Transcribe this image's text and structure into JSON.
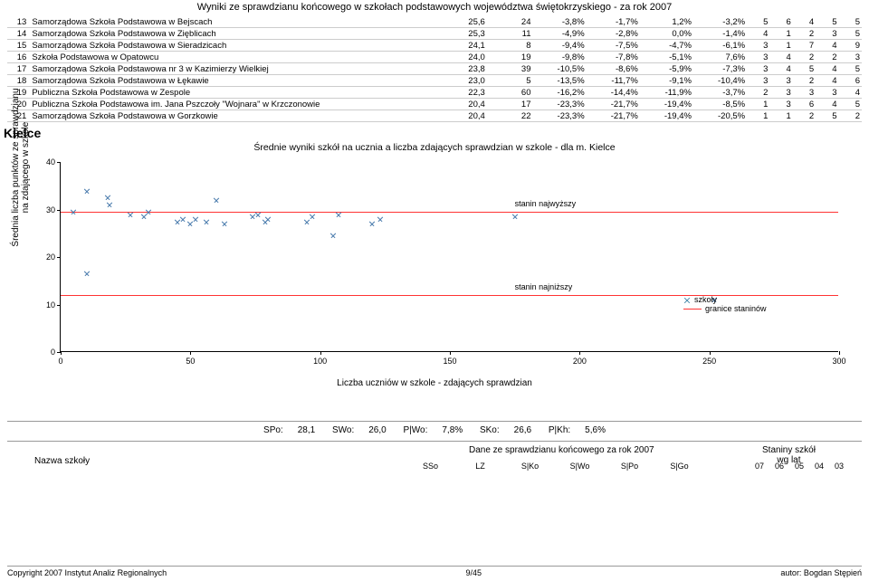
{
  "title": "Wyniki ze sprawdzianu końcowego w szkołach podstawowych województwa świętokrzyskiego - za rok 2007",
  "rows": [
    {
      "idx": 13,
      "name": "Samorządowa Szkoła Podstawowa w Bejscach",
      "sso": "25,6",
      "lz": 24,
      "p": [
        "-3,8%",
        "-1,7%",
        "1,2%",
        "-3,2%"
      ],
      "s": [
        5,
        6,
        4,
        5,
        5
      ]
    },
    {
      "idx": 14,
      "name": "Samorządowa Szkoła Podstawowa w Zięblicach",
      "sso": "25,3",
      "lz": 11,
      "p": [
        "-4,9%",
        "-2,8%",
        "0,0%",
        "-1,4%"
      ],
      "s": [
        4,
        1,
        2,
        3,
        5
      ]
    },
    {
      "idx": 15,
      "name": "Samorządowa Szkoła Podstawowa w Sieradzicach",
      "sso": "24,1",
      "lz": 8,
      "p": [
        "-9,4%",
        "-7,5%",
        "-4,7%",
        "-6,1%"
      ],
      "s": [
        3,
        1,
        7,
        4,
        9
      ]
    },
    {
      "idx": 16,
      "name": "Szkoła Podstawowa w Opatowcu",
      "sso": "24,0",
      "lz": 19,
      "p": [
        "-9,8%",
        "-7,8%",
        "-5,1%",
        "7,6%"
      ],
      "s": [
        3,
        4,
        2,
        2,
        3
      ]
    },
    {
      "idx": 17,
      "name": "Samorządowa Szkoła Podstawowa nr 3 w Kazimierzy Wielkiej",
      "sso": "23,8",
      "lz": 39,
      "p": [
        "-10,5%",
        "-8,6%",
        "-5,9%",
        "-7,3%"
      ],
      "s": [
        3,
        4,
        5,
        4,
        5
      ]
    },
    {
      "idx": 18,
      "name": "Samorządowa Szkoła Podstawowa w Łękawie",
      "sso": "23,0",
      "lz": 5,
      "p": [
        "-13,5%",
        "-11,7%",
        "-9,1%",
        "-10,4%"
      ],
      "s": [
        3,
        3,
        2,
        4,
        6
      ]
    },
    {
      "idx": 19,
      "name": "Publiczna Szkoła Podstawowa w Zespole",
      "sso": "22,3",
      "lz": 60,
      "p": [
        "-16,2%",
        "-14,4%",
        "-11,9%",
        "-3,7%"
      ],
      "s": [
        2,
        3,
        3,
        3,
        4
      ]
    },
    {
      "idx": 20,
      "name": "Publiczna Szkoła Podstawowa im. Jana Pszczoły \"Wojnara\" w Krzczonowie",
      "sso": "20,4",
      "lz": 17,
      "p": [
        "-23,3%",
        "-21,7%",
        "-19,4%",
        "-8,5%"
      ],
      "s": [
        1,
        3,
        6,
        4,
        5
      ]
    },
    {
      "idx": 21,
      "name": "Samorządowa Szkoła Podstawowa w Gorzkowie",
      "sso": "20,4",
      "lz": 22,
      "p": [
        "-23,3%",
        "-21,7%",
        "-19,4%",
        "-20,5%"
      ],
      "s": [
        1,
        1,
        2,
        5,
        2
      ]
    }
  ],
  "region": "Kielce",
  "chart": {
    "title": "Średnie wyniki szkół na ucznia a liczba zdających sprawdzian w szkole - dla m. Kielce",
    "ylabel_1": "Średnia liczba punktów ze sprawdzianu",
    "ylabel_2": "na zdającego w szkole",
    "xlabel": "Liczba uczniów w szkole - zdających sprawdzian",
    "xlim": [
      0,
      300
    ],
    "xtick_step": 50,
    "ylim": [
      0,
      40
    ],
    "ytick_step": 10,
    "marker_color": "#4477aa",
    "stanin_color": "#ff3333",
    "stanin_high": {
      "y": 29.5,
      "label": "stanin najwyższy"
    },
    "stanin_low": {
      "y": 12,
      "label": "stanin najniższy"
    },
    "legend": {
      "schools": "szkoły",
      "bounds": "granice staninów"
    },
    "points": [
      {
        "x": 5,
        "y": 29.5
      },
      {
        "x": 10,
        "y": 34
      },
      {
        "x": 10,
        "y": 16.5
      },
      {
        "x": 18,
        "y": 32.5
      },
      {
        "x": 19,
        "y": 31
      },
      {
        "x": 27,
        "y": 29
      },
      {
        "x": 32,
        "y": 28.5
      },
      {
        "x": 34,
        "y": 29.5
      },
      {
        "x": 45,
        "y": 27.5
      },
      {
        "x": 47,
        "y": 28
      },
      {
        "x": 50,
        "y": 27
      },
      {
        "x": 52,
        "y": 28
      },
      {
        "x": 56,
        "y": 27.5
      },
      {
        "x": 60,
        "y": 32
      },
      {
        "x": 63,
        "y": 27
      },
      {
        "x": 74,
        "y": 28.5
      },
      {
        "x": 76,
        "y": 29
      },
      {
        "x": 79,
        "y": 27.5
      },
      {
        "x": 80,
        "y": 28
      },
      {
        "x": 95,
        "y": 27.5
      },
      {
        "x": 97,
        "y": 28.5
      },
      {
        "x": 105,
        "y": 24.5
      },
      {
        "x": 107,
        "y": 29
      },
      {
        "x": 120,
        "y": 27
      },
      {
        "x": 123,
        "y": 28
      },
      {
        "x": 175,
        "y": 28.5
      },
      {
        "x": 252,
        "y": 11
      }
    ]
  },
  "summary": {
    "spo": "SPo:",
    "spo_v": "28,1",
    "swo": "SWo:",
    "swo_v": "26,0",
    "pwo": "P|Wo:",
    "pwo_v": "7,8%",
    "sko": "SKo:",
    "sko_v": "26,6",
    "pkh": "P|Kh:",
    "pkh_v": "5,6%"
  },
  "footer_head": {
    "nazwa": "Nazwa szkoły",
    "dane": "Dane ze sprawdzianu końcowego za rok 2007",
    "staniny_1": "Staniny szkół",
    "staniny_2": "wg lat",
    "cols": [
      "SSo",
      "LZ",
      "S|Ko",
      "S|Wo",
      "S|Po",
      "S|Go"
    ],
    "yrs": [
      "07",
      "06",
      "05",
      "04",
      "03"
    ]
  },
  "page_footer": {
    "left": "Copyright 2007 Instytut Analiz Regionalnych",
    "center": "9/45",
    "right": "autor: Bogdan Stępień"
  }
}
